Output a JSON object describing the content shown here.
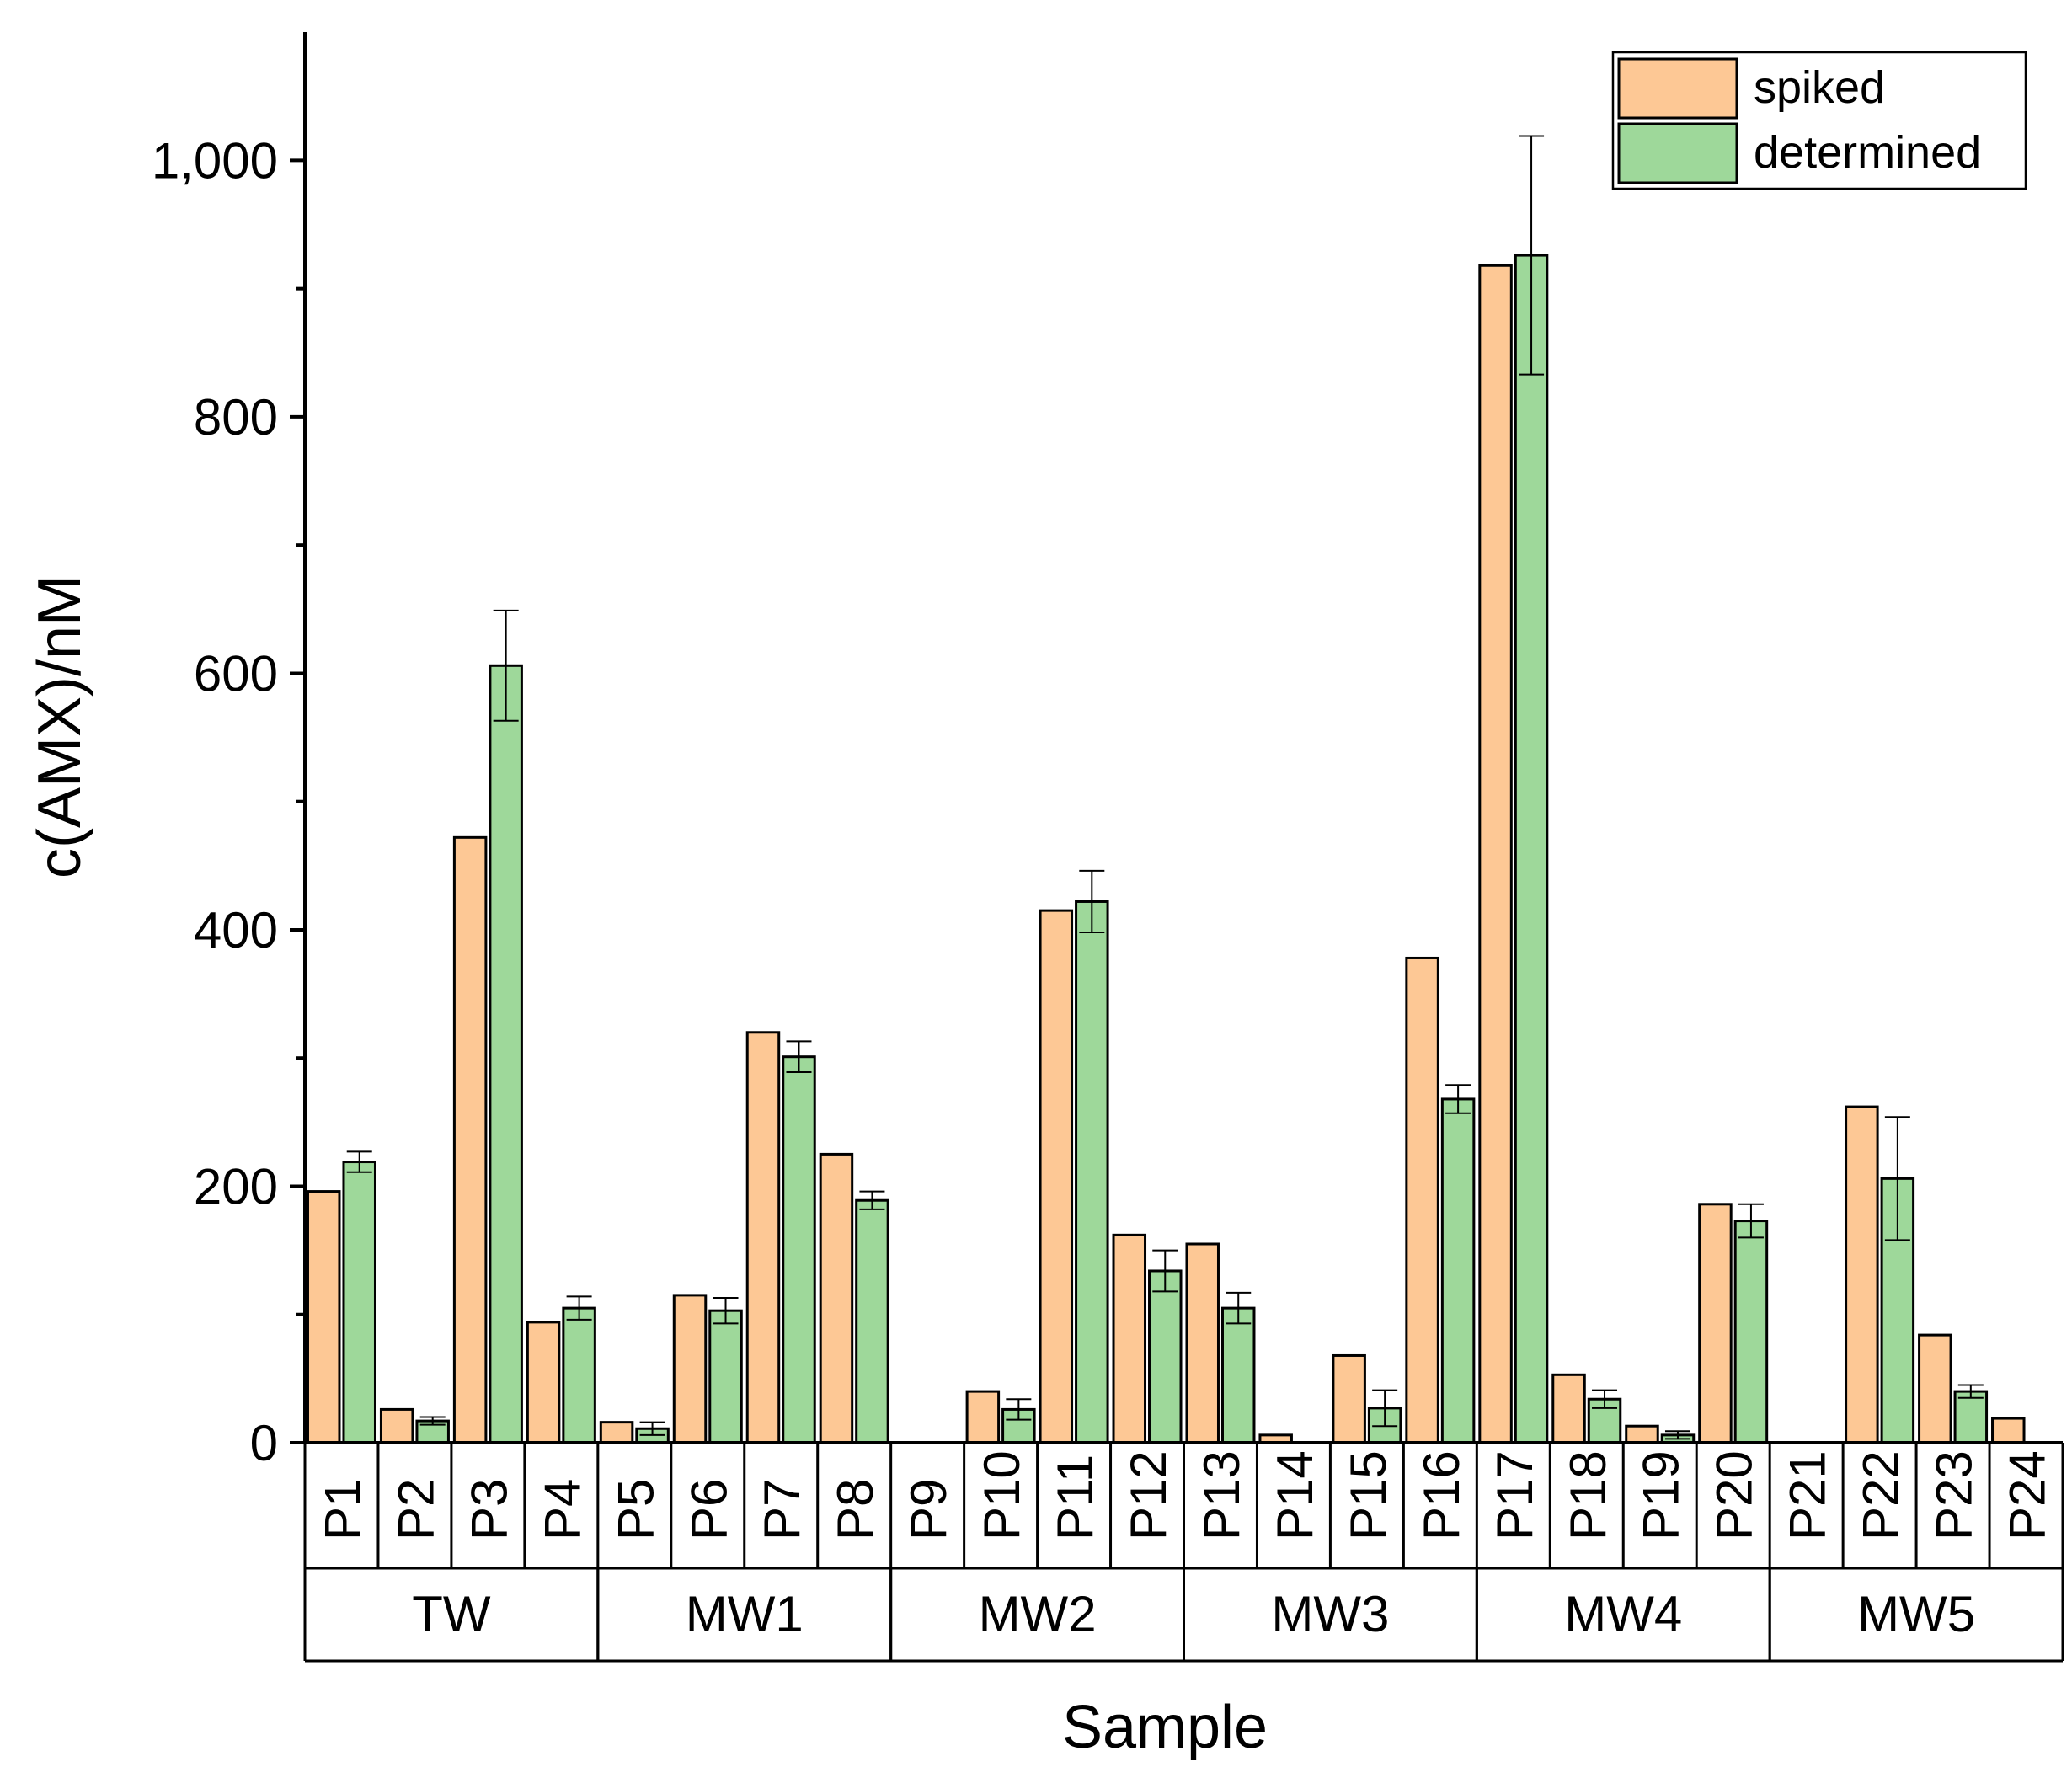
{
  "chart_data": {
    "type": "bar",
    "title": "",
    "xlabel": "Sample",
    "ylabel": "c(AMX)/nM",
    "ylim": [
      0,
      1100
    ],
    "yticks": [
      0,
      200,
      400,
      600,
      800,
      1000
    ],
    "ytick_labels": [
      "0",
      "200",
      "400",
      "600",
      "800",
      "1,000"
    ],
    "grid": false,
    "legend_position": "top-right",
    "categories": [
      "P1",
      "P2",
      "P3",
      "P4",
      "P5",
      "P6",
      "P7",
      "P8",
      "P9",
      "P10",
      "P11",
      "P12",
      "P13",
      "P14",
      "P15",
      "P16",
      "P17",
      "P18",
      "P19",
      "P20",
      "P21",
      "P22",
      "P23",
      "P24"
    ],
    "groups": [
      {
        "name": "TW",
        "members": [
          "P1",
          "P2",
          "P3",
          "P4"
        ]
      },
      {
        "name": "MW1",
        "members": [
          "P5",
          "P6",
          "P7",
          "P8"
        ]
      },
      {
        "name": "MW2",
        "members": [
          "P9",
          "P10",
          "P11",
          "P12"
        ]
      },
      {
        "name": "MW3",
        "members": [
          "P13",
          "P14",
          "P15",
          "P16"
        ]
      },
      {
        "name": "MW4",
        "members": [
          "P17",
          "P18",
          "P19",
          "P20"
        ]
      },
      {
        "name": "MW5",
        "members": [
          "P21",
          "P22",
          "P23",
          "P24"
        ]
      }
    ],
    "series": [
      {
        "name": "spiked",
        "color": "#FDC895",
        "values": [
          196,
          26,
          472,
          94,
          16,
          115,
          320,
          225,
          0,
          40,
          415,
          162,
          155,
          6,
          68,
          378,
          918,
          53,
          13,
          186,
          0,
          262,
          84,
          19
        ]
      },
      {
        "name": "determined",
        "color": "#9ED89A",
        "values": [
          219,
          17,
          606,
          105,
          11,
          103,
          301,
          189,
          null,
          26,
          422,
          134,
          105,
          null,
          27,
          268,
          926,
          34,
          6,
          173,
          null,
          206,
          40,
          null
        ],
        "errors": [
          8,
          3,
          43,
          9,
          5,
          10,
          12,
          7,
          null,
          8,
          24,
          16,
          12,
          null,
          14,
          11,
          93,
          7,
          3,
          13,
          null,
          48,
          5,
          null
        ]
      }
    ]
  }
}
